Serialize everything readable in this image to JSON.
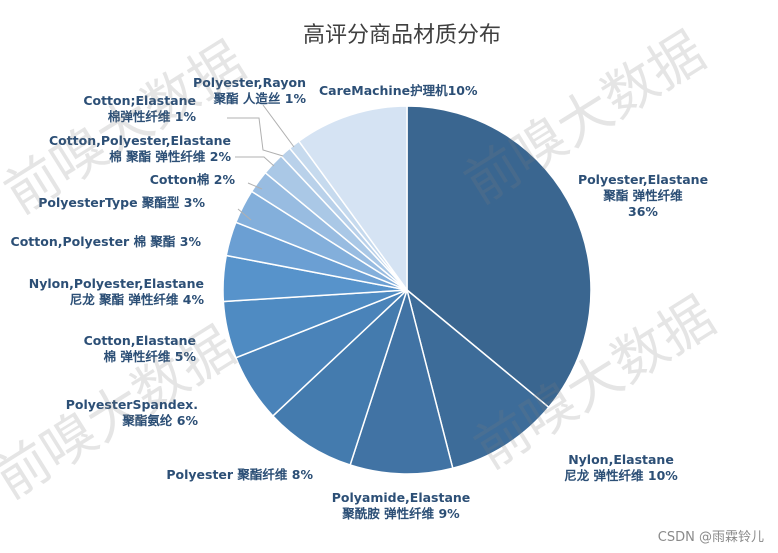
{
  "chart_data": {
    "type": "pie",
    "title": "高评分商品材质分布",
    "slices": [
      {
        "lines": [
          "Polyester,Elastane",
          "聚酯 弹性纤维",
          "36%"
        ],
        "value": 36,
        "color": "#3a6690"
      },
      {
        "lines": [
          "Nylon,Elastane",
          "尼龙 弹性纤维 10%"
        ],
        "value": 10,
        "color": "#3d6c99"
      },
      {
        "lines": [
          "Polyamide,Elastane",
          "聚酰胺 弹性纤维 9%"
        ],
        "value": 9,
        "color": "#4173a4"
      },
      {
        "lines": [
          "Polyester 聚酯纤维 8%"
        ],
        "value": 8,
        "color": "#447bae"
      },
      {
        "lines": [
          "PolyesterSpandex.",
          "聚酯氨纶 6%"
        ],
        "value": 6,
        "color": "#4a83b9"
      },
      {
        "lines": [
          "Cotton,Elastane",
          "棉 弹性纤维 5%"
        ],
        "value": 5,
        "color": "#4f8bc2"
      },
      {
        "lines": [
          "Nylon,Polyester,Elastane",
          "尼龙 聚酯 弹性纤维 4%"
        ],
        "value": 4,
        "color": "#5793cb"
      },
      {
        "lines": [
          "Cotton,Polyester 棉 聚酯  3%"
        ],
        "value": 3,
        "color": "#6b9fd3"
      },
      {
        "lines": [
          "PolyesterType 聚酯型 3%"
        ],
        "value": 3,
        "color": "#83afdb"
      },
      {
        "lines": [
          "Cotton棉 2%"
        ],
        "value": 2,
        "color": "#98bce1"
      },
      {
        "lines": [
          "Cotton,Polyester,Elastane",
          "棉 聚酯 弹性纤维 2%"
        ],
        "value": 2,
        "color": "#aac8e6"
      },
      {
        "lines": [
          "Cotton;Elastane",
          "棉弹性纤维 1%"
        ],
        "value": 1,
        "color": "#b9d1ea"
      },
      {
        "lines": [
          "Polyester,Rayon",
          "聚酯 人造丝 1%"
        ],
        "value": 1,
        "color": "#c6daee"
      },
      {
        "lines": [
          "CareMachine护理机10%"
        ],
        "value": 10,
        "color": "#d5e3f3"
      }
    ]
  },
  "watermark": "前嗅大数据",
  "credit": "CSDN @雨霖铃儿"
}
